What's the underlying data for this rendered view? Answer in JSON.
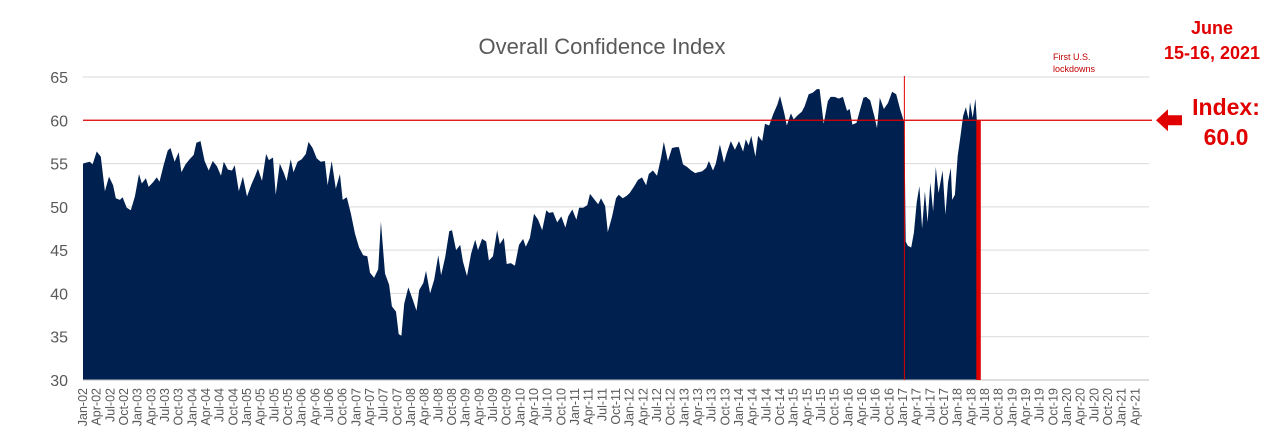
{
  "chart_data": {
    "type": "area",
    "title": "Overall Confidence Index",
    "xlabel": "",
    "ylabel": "",
    "ylim": [
      30,
      65
    ],
    "yticks": [
      "30",
      "35",
      "40",
      "45",
      "50",
      "55",
      "60",
      "65"
    ],
    "grid": true,
    "x_tick_labels": [
      "Jan-02",
      "Apr-02",
      "Jul-02",
      "Oct-02",
      "Jan-03",
      "Apr-03",
      "Jul-03",
      "Oct-03",
      "Jan-04",
      "Apr-04",
      "Jul-04",
      "Oct-04",
      "Jan-05",
      "Apr-05",
      "Jul-05",
      "Oct-05",
      "Jan-06",
      "Apr-06",
      "Jul-06",
      "Oct-06",
      "Jan-07",
      "Apr-07",
      "Jul-07",
      "Oct-07",
      "Jan-08",
      "Apr-08",
      "Jul-08",
      "Oct-08",
      "Jan-09",
      "Apr-09",
      "Jul-09",
      "Oct-09",
      "Jan-10",
      "Apr-10",
      "Jul-10",
      "Oct-10",
      "Jan-11",
      "Apr-11",
      "Jul-11",
      "Oct-11",
      "Jan-12",
      "Apr-12",
      "Jul-12",
      "Oct-12",
      "Jan-13",
      "Apr-13",
      "Jul-13",
      "Oct-13",
      "Jan-14",
      "Apr-14",
      "Jul-14",
      "Oct-14",
      "Jan-15",
      "Apr-15",
      "Jul-15",
      "Oct-15",
      "Jan-16",
      "Apr-16",
      "Jul-16",
      "Oct-16",
      "Jan-17",
      "Apr-17",
      "Jul-17",
      "Oct-17",
      "Jan-18",
      "Apr-18",
      "Jul-18",
      "Oct-18",
      "Jan-19",
      "Apr-19",
      "Jul-19",
      "Oct-19",
      "Jan-20",
      "Apr-20",
      "Jul-20",
      "Oct-20",
      "Jan-21",
      "Apr-21"
    ],
    "series": [
      {
        "name": "Overall Confidence Index",
        "color": "#002050",
        "points": [
          [
            0,
            55
          ],
          [
            0.2,
            55.1
          ],
          [
            0.5,
            55.2
          ],
          [
            0.7,
            54.9
          ],
          [
            1,
            56.4
          ],
          [
            1.3,
            55.8
          ],
          [
            1.6,
            51.8
          ],
          [
            1.9,
            53.5
          ],
          [
            2.2,
            52.5
          ],
          [
            2.4,
            51
          ],
          [
            2.7,
            50.8
          ],
          [
            2.9,
            51.1
          ],
          [
            3.2,
            49.9
          ],
          [
            3.5,
            49.6
          ],
          [
            3.8,
            51.2
          ],
          [
            4.1,
            53.8
          ],
          [
            4.3,
            52.7
          ],
          [
            4.6,
            53.3
          ],
          [
            4.8,
            52.3
          ],
          [
            5.1,
            52.8
          ],
          [
            5.4,
            53.4
          ],
          [
            5.6,
            52.9
          ],
          [
            5.9,
            54.8
          ],
          [
            6.2,
            56.5
          ],
          [
            6.4,
            56.8
          ],
          [
            6.7,
            55.2
          ],
          [
            7,
            56.3
          ],
          [
            7.2,
            54
          ],
          [
            7.5,
            54.9
          ],
          [
            7.8,
            55.5
          ],
          [
            8.1,
            56
          ],
          [
            8.3,
            57.4
          ],
          [
            8.6,
            57.6
          ],
          [
            8.9,
            55.3
          ],
          [
            9.2,
            54.2
          ],
          [
            9.5,
            55.3
          ],
          [
            9.8,
            54.7
          ],
          [
            10.1,
            53.6
          ],
          [
            10.3,
            55.2
          ],
          [
            10.6,
            54.3
          ],
          [
            10.9,
            54.2
          ],
          [
            11.1,
            54.8
          ],
          [
            11.4,
            51.8
          ],
          [
            11.7,
            53.5
          ],
          [
            12,
            51.2
          ],
          [
            12.3,
            52.5
          ],
          [
            12.6,
            53.6
          ],
          [
            12.8,
            54.4
          ],
          [
            13.1,
            53
          ],
          [
            13.4,
            56.1
          ],
          [
            13.6,
            55.4
          ],
          [
            13.9,
            55.7
          ],
          [
            14.1,
            51.4
          ],
          [
            14.4,
            55
          ],
          [
            14.7,
            53.9
          ],
          [
            14.9,
            53
          ],
          [
            15.2,
            55.5
          ],
          [
            15.4,
            54
          ],
          [
            15.7,
            55.2
          ],
          [
            16,
            55.5
          ],
          [
            16.3,
            56.1
          ],
          [
            16.5,
            57.5
          ],
          [
            16.8,
            56.8
          ],
          [
            17.1,
            55.6
          ],
          [
            17.4,
            55.2
          ],
          [
            17.7,
            55.3
          ],
          [
            17.9,
            52.5
          ],
          [
            18.2,
            55.3
          ],
          [
            18.5,
            52.1
          ],
          [
            18.8,
            53.8
          ],
          [
            19,
            50.8
          ],
          [
            19.3,
            51.1
          ],
          [
            19.6,
            49.2
          ],
          [
            19.9,
            46.9
          ],
          [
            20.2,
            45.3
          ],
          [
            20.5,
            44.4
          ],
          [
            20.8,
            44.3
          ],
          [
            21,
            42.4
          ],
          [
            21.3,
            41.8
          ],
          [
            21.6,
            42.8
          ],
          [
            21.8,
            48.3
          ],
          [
            22.1,
            42.3
          ],
          [
            22.4,
            41
          ],
          [
            22.6,
            38.5
          ],
          [
            22.9,
            37.9
          ],
          [
            23.1,
            35.3
          ],
          [
            23.3,
            35.1
          ],
          [
            23.5,
            38.8
          ],
          [
            23.8,
            40.7
          ],
          [
            24.1,
            39.4
          ],
          [
            24.4,
            38
          ],
          [
            24.6,
            40.4
          ],
          [
            24.9,
            41.2
          ],
          [
            25.1,
            42.6
          ],
          [
            25.4,
            40
          ],
          [
            25.7,
            41.6
          ],
          [
            26,
            44.4
          ],
          [
            26.2,
            42.1
          ],
          [
            26.5,
            44.2
          ],
          [
            26.8,
            47.2
          ],
          [
            27,
            47.3
          ],
          [
            27.3,
            45
          ],
          [
            27.6,
            45.6
          ],
          [
            27.8,
            43.7
          ],
          [
            28.1,
            42
          ],
          [
            28.4,
            44.6
          ],
          [
            28.7,
            46.2
          ],
          [
            28.9,
            45
          ],
          [
            29.2,
            46.3
          ],
          [
            29.5,
            46
          ],
          [
            29.7,
            43.8
          ],
          [
            30,
            44.3
          ],
          [
            30.3,
            47.3
          ],
          [
            30.5,
            45.7
          ],
          [
            30.8,
            46.4
          ],
          [
            31,
            43.4
          ],
          [
            31.3,
            43.5
          ],
          [
            31.6,
            43.2
          ],
          [
            31.9,
            45.6
          ],
          [
            32.2,
            46.3
          ],
          [
            32.4,
            45.4
          ],
          [
            32.7,
            46.4
          ],
          [
            33,
            49.2
          ],
          [
            33.3,
            48.5
          ],
          [
            33.6,
            47.3
          ],
          [
            33.9,
            49.6
          ],
          [
            34.1,
            49.3
          ],
          [
            34.4,
            49.4
          ],
          [
            34.7,
            48.2
          ],
          [
            35,
            48.9
          ],
          [
            35.3,
            47.6
          ],
          [
            35.5,
            48.9
          ],
          [
            35.8,
            49.7
          ],
          [
            36.1,
            48.5
          ],
          [
            36.3,
            49.9
          ],
          [
            36.6,
            49.9
          ],
          [
            36.9,
            50.2
          ],
          [
            37.1,
            51.5
          ],
          [
            37.4,
            50.9
          ],
          [
            37.7,
            50.3
          ],
          [
            37.9,
            51
          ],
          [
            38.2,
            50.1
          ],
          [
            38.4,
            47.1
          ],
          [
            38.7,
            48.8
          ],
          [
            39,
            51
          ],
          [
            39.2,
            51.4
          ],
          [
            39.5,
            51
          ],
          [
            39.8,
            51.3
          ],
          [
            40,
            51.6
          ],
          [
            40.3,
            52.3
          ],
          [
            40.6,
            53.1
          ],
          [
            40.9,
            53.4
          ],
          [
            41.2,
            52.5
          ],
          [
            41.4,
            53.8
          ],
          [
            41.7,
            54.2
          ],
          [
            42,
            53.6
          ],
          [
            42.3,
            55.7
          ],
          [
            42.5,
            57.5
          ],
          [
            42.8,
            55.3
          ],
          [
            43.1,
            56.8
          ],
          [
            43.4,
            56.9
          ],
          [
            43.6,
            56.9
          ],
          [
            43.9,
            54.9
          ],
          [
            44.2,
            54.6
          ],
          [
            44.5,
            54.2
          ],
          [
            44.8,
            53.9
          ],
          [
            45,
            54
          ],
          [
            45.3,
            54.1
          ],
          [
            45.6,
            54.5
          ],
          [
            45.8,
            55.3
          ],
          [
            46.1,
            54.2
          ],
          [
            46.3,
            55
          ],
          [
            46.6,
            57.2
          ],
          [
            46.9,
            55.1
          ],
          [
            47.1,
            56.2
          ],
          [
            47.4,
            57.6
          ],
          [
            47.7,
            56.6
          ],
          [
            48,
            57.6
          ],
          [
            48.3,
            56.4
          ],
          [
            48.5,
            57.8
          ],
          [
            48.7,
            57.1
          ],
          [
            48.9,
            58.2
          ],
          [
            49.2,
            55.8
          ],
          [
            49.4,
            58.2
          ],
          [
            49.7,
            57.6
          ],
          [
            49.9,
            59.6
          ],
          [
            50.2,
            59.4
          ],
          [
            50.5,
            60.7
          ],
          [
            50.8,
            61.8
          ],
          [
            51,
            62.8
          ],
          [
            51.3,
            60.9
          ],
          [
            51.5,
            59.4
          ],
          [
            51.8,
            60.8
          ],
          [
            52,
            60.1
          ],
          [
            52.3,
            60.6
          ],
          [
            52.6,
            61
          ],
          [
            52.8,
            61.6
          ],
          [
            53.1,
            63
          ],
          [
            53.4,
            63.2
          ],
          [
            53.7,
            63.6
          ],
          [
            53.9,
            63.6
          ],
          [
            54.2,
            59.6
          ],
          [
            54.5,
            62.2
          ],
          [
            54.7,
            62.7
          ],
          [
            55,
            62.7
          ],
          [
            55.3,
            62.5
          ],
          [
            55.6,
            62.7
          ],
          [
            55.9,
            61.1
          ],
          [
            56.1,
            61.3
          ],
          [
            56.3,
            59.5
          ],
          [
            56.6,
            59.7
          ],
          [
            56.8,
            60.9
          ],
          [
            57.1,
            62.6
          ],
          [
            57.3,
            62.7
          ],
          [
            57.6,
            62.3
          ],
          [
            57.9,
            60.5
          ],
          [
            58.1,
            59.1
          ],
          [
            58.3,
            62.6
          ],
          [
            58.6,
            61.3
          ],
          [
            58.9,
            62
          ],
          [
            59.2,
            63.3
          ],
          [
            59.5,
            63
          ],
          [
            59.8,
            61.2
          ],
          [
            60.1,
            59.7
          ],
          [
            60.2,
            46
          ],
          [
            60.35,
            45.5
          ],
          [
            60.6,
            45.3
          ],
          [
            60.8,
            47
          ],
          [
            61,
            50.5
          ],
          [
            61.2,
            52.4
          ],
          [
            61.4,
            47.5
          ],
          [
            61.6,
            51.8
          ],
          [
            61.8,
            48.2
          ],
          [
            62,
            52.8
          ],
          [
            62.2,
            49.5
          ],
          [
            62.4,
            54.6
          ],
          [
            62.6,
            51.6
          ],
          [
            62.9,
            54.2
          ],
          [
            63.1,
            49.1
          ],
          [
            63.3,
            52.9
          ],
          [
            63.5,
            54.5
          ],
          [
            63.6,
            50.8
          ],
          [
            63.8,
            51.4
          ],
          [
            64,
            55.9
          ],
          [
            64.2,
            58.1
          ],
          [
            64.4,
            60.5
          ],
          [
            64.6,
            61.5
          ],
          [
            64.8,
            60.1
          ],
          [
            64.9,
            62.1
          ],
          [
            65.1,
            60.3
          ],
          [
            65.3,
            62.5
          ],
          [
            65.4,
            60
          ]
        ]
      }
    ],
    "annotations": {
      "first_lockdowns": "First U.S. lockdowns",
      "first_lockdowns_line1": "First U.S.",
      "first_lockdowns_line2": "lockdowns",
      "date_line1": "June",
      "date_line2": "15-16, 2021",
      "index_line1": "Index:",
      "index_line2": "60.0",
      "reference_value": 60,
      "lockdown_x": 60.1,
      "current_x": 65.4,
      "reference_color": "#e00000"
    }
  }
}
